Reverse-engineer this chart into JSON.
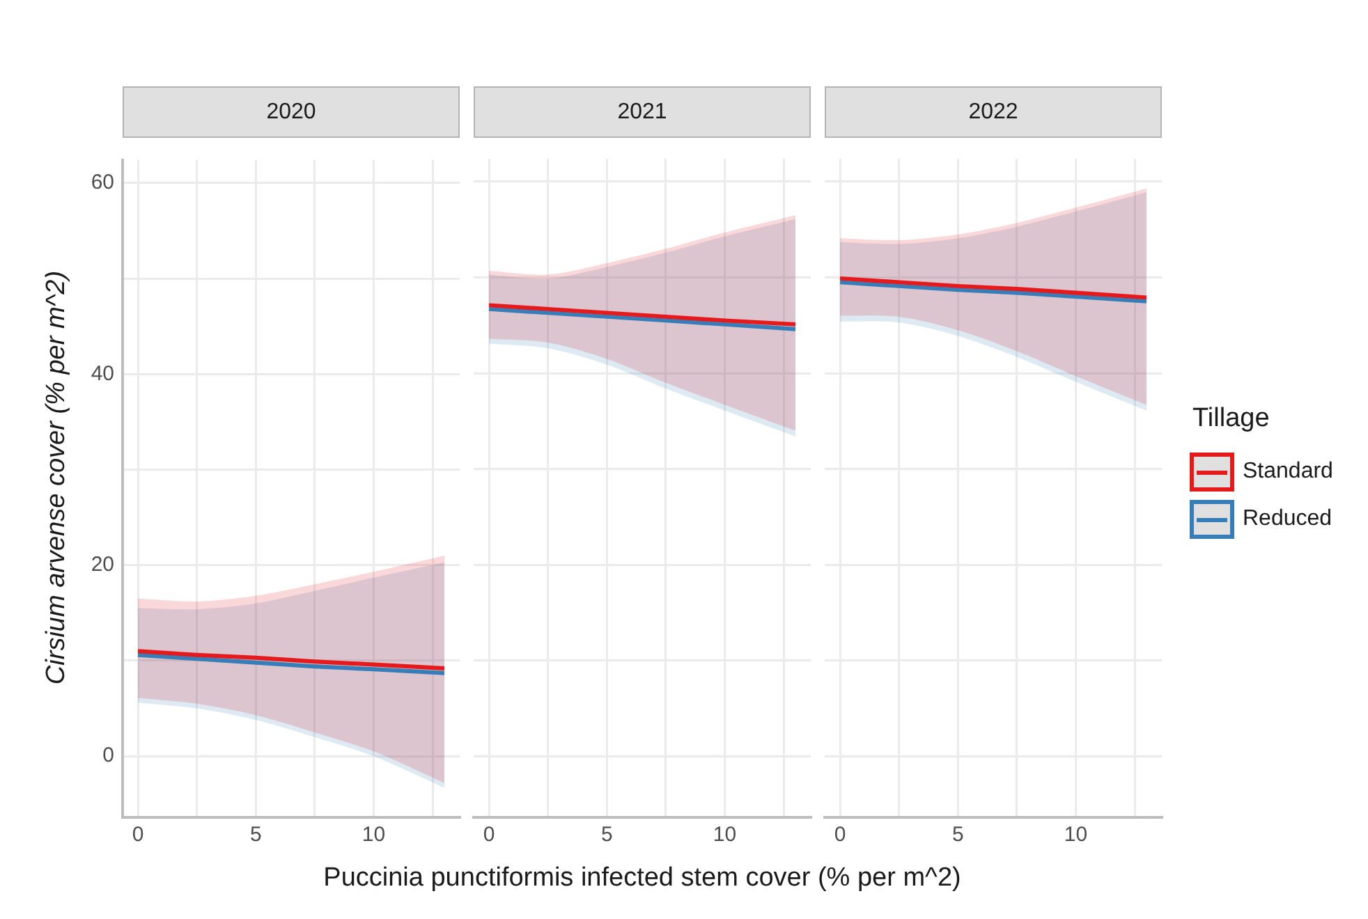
{
  "chart_data": [
    {
      "type": "line",
      "title": "2020",
      "ylabel": "Cirsium arvense cover (% per m^2)",
      "x": [
        0,
        2.5,
        5,
        7.5,
        10,
        13
      ],
      "series": [
        {
          "color": "#e41a1c",
          "values": [
            11.0,
            10.6,
            10.3,
            9.9,
            9.6,
            9.2
          ],
          "lower": [
            6.1,
            5.5,
            4.3,
            2.5,
            0.5,
            -2.8
          ],
          "upper": [
            16.5,
            16.2,
            16.8,
            18.0,
            19.3,
            21.0
          ]
        },
        {
          "color": "#377eb8",
          "values": [
            10.6,
            10.2,
            9.8,
            9.4,
            9.1,
            8.7
          ],
          "lower": [
            5.6,
            5.0,
            3.8,
            2.0,
            0.0,
            -3.3
          ],
          "upper": [
            15.5,
            15.4,
            16.0,
            17.3,
            18.7,
            20.3
          ]
        }
      ],
      "xlim": [
        -0.65,
        13.65
      ],
      "ylim": [
        -6.4,
        62.4
      ],
      "xticks": [
        0,
        {
          "value": 2.5,
          "label": null
        },
        5,
        {
          "value": 7.5,
          "label": null
        },
        10,
        {
          "value": 12.5,
          "label": null
        }
      ],
      "yticks": [
        0,
        {
          "value": 10,
          "label": null
        },
        20,
        {
          "value": 30,
          "label": null
        },
        40,
        {
          "value": 50,
          "label": null
        },
        60
      ],
      "grid": true,
      "line_style": "solid",
      "marker": "none"
    },
    {
      "type": "line",
      "title": "2021",
      "xlabel": "Puccinia punctiformis infected stem cover (% per m^2)",
      "x": [
        0,
        2.5,
        5,
        7.5,
        10,
        13
      ],
      "series": [
        {
          "color": "#e41a1c",
          "values": [
            47.1,
            46.7,
            46.3,
            45.9,
            45.5,
            45.1
          ],
          "lower": [
            43.6,
            43.2,
            41.5,
            39.0,
            36.7,
            34.0
          ],
          "upper": [
            50.7,
            50.3,
            51.5,
            53.0,
            54.7,
            56.5
          ]
        },
        {
          "color": "#377eb8",
          "values": [
            46.7,
            46.3,
            45.9,
            45.5,
            45.1,
            44.6
          ],
          "lower": [
            43.1,
            42.6,
            40.9,
            38.4,
            36.1,
            33.4
          ],
          "upper": [
            50.3,
            49.9,
            51.1,
            52.6,
            54.3,
            56.1
          ]
        }
      ],
      "xlim": [
        -0.65,
        13.65
      ],
      "ylim": [
        -6.4,
        62.4
      ],
      "xticks": [
        0,
        {
          "value": 2.5,
          "label": null
        },
        5,
        {
          "value": 7.5,
          "label": null
        },
        10,
        {
          "value": 12.5,
          "label": null
        }
      ],
      "yticks": [
        {
          "value": 0,
          "label": null
        },
        {
          "value": 10,
          "label": null
        },
        {
          "value": 20,
          "label": null
        },
        {
          "value": 30,
          "label": null
        },
        {
          "value": 40,
          "label": null
        },
        {
          "value": 50,
          "label": null
        },
        {
          "value": 60,
          "label": null
        }
      ],
      "tick_labels": "x",
      "grid": true,
      "line_style": "solid",
      "marker": "none"
    },
    {
      "type": "line",
      "title": "2022",
      "legend_title": "Tillage",
      "x": [
        0,
        2.5,
        5,
        7.5,
        10,
        13
      ],
      "series": [
        {
          "name": "Standard",
          "color": "#e41a1c",
          "values": [
            49.9,
            49.5,
            49.1,
            48.8,
            48.4,
            47.9
          ],
          "lower": [
            46.0,
            45.9,
            44.5,
            42.3,
            39.7,
            36.7
          ],
          "upper": [
            54.1,
            53.9,
            54.5,
            55.7,
            57.3,
            59.3
          ]
        },
        {
          "name": "Reduced",
          "color": "#377eb8",
          "values": [
            49.5,
            49.1,
            48.7,
            48.4,
            48.0,
            47.5
          ],
          "lower": [
            45.4,
            45.3,
            43.9,
            41.7,
            39.1,
            36.1
          ],
          "upper": [
            53.7,
            53.5,
            54.1,
            55.3,
            56.9,
            58.9
          ]
        }
      ],
      "xlim": [
        -0.65,
        13.65
      ],
      "ylim": [
        -6.4,
        62.4
      ],
      "xticks": [
        0,
        {
          "value": 2.5,
          "label": null
        },
        5,
        {
          "value": 7.5,
          "label": null
        },
        10,
        {
          "value": 12.5,
          "label": null
        }
      ],
      "yticks": [
        {
          "value": 0,
          "label": null
        },
        {
          "value": 10,
          "label": null
        },
        {
          "value": 20,
          "label": null
        },
        {
          "value": 30,
          "label": null
        },
        {
          "value": 40,
          "label": null
        },
        {
          "value": 50,
          "label": null
        },
        {
          "value": 60,
          "label": null
        }
      ],
      "tick_labels": "x",
      "grid": true,
      "legend": "right",
      "line_style": "solid",
      "marker": "none"
    }
  ]
}
